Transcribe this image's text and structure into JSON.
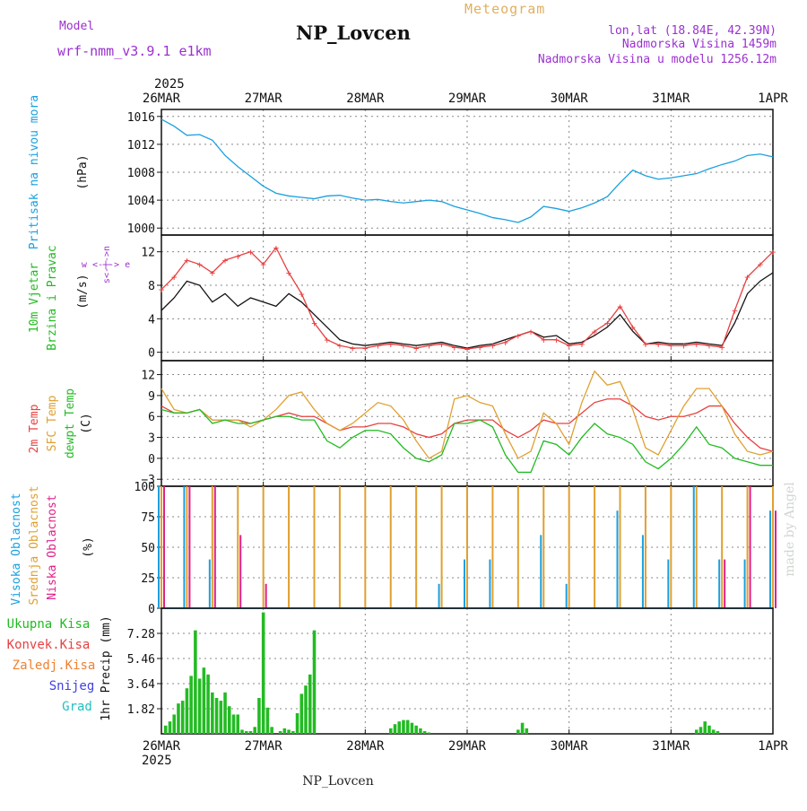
{
  "header": {
    "model_label": "Model",
    "model_value": "wrf-nmm_v3.9.1 e1km",
    "title": "NP_Lovcen",
    "meteogram_label": "Meteogram",
    "lonlat": "lon,lat (18.84E, 42.39N)",
    "elevation": "Nadmorska Visina 1459m",
    "model_elevation": "Nadmorska Visina u modelu 1256.12m"
  },
  "time_axis": {
    "year_label": "2025",
    "dates": [
      "26MAR",
      "27MAR",
      "28MAR",
      "29MAR",
      "30MAR",
      "31MAR",
      "1APR"
    ]
  },
  "footer": {
    "station": "NP_Lovcen"
  },
  "watermark": "made by Angel",
  "colors": {
    "pressure": "#1aa0e0",
    "wind_speed_label": "#22bb22",
    "wind_dir_label": "#22bb22",
    "t2m": "#e84040",
    "sfc": "#e0a030",
    "dewpt": "#22bb22",
    "cloud_high": "#1aa0e0",
    "cloud_mid": "#e0a030",
    "cloud_low": "#e0208a",
    "precip_total": "#22bb22",
    "precip_conv": "#e84040",
    "precip_frz": "#f08030",
    "snow": "#4040e0",
    "graupel": "#20c0c0",
    "purple": "#9b30d0"
  },
  "chart_data": [
    {
      "type": "line",
      "panel": "pressure",
      "ylabel_left": "Pritisak na nivou mora",
      "unit": "(hPa)",
      "ylim": [
        999,
        1017
      ],
      "yticks": [
        1000,
        1004,
        1008,
        1012,
        1016
      ],
      "x_hours": [
        0,
        3,
        6,
        9,
        12,
        15,
        18,
        21,
        24,
        27,
        30,
        33,
        36,
        39,
        42,
        45,
        48,
        51,
        54,
        57,
        60,
        63,
        66,
        69,
        72,
        75,
        78,
        81,
        84,
        87,
        90,
        93,
        96,
        99,
        102,
        105,
        108,
        111,
        114,
        117,
        120,
        123,
        126,
        129,
        132,
        135,
        138,
        141,
        144
      ],
      "series": [
        {
          "name": "Pritisak na nivou mora",
          "color": "#1aa0e0",
          "values": [
            1015.6,
            1014.6,
            1013.3,
            1013.4,
            1012.6,
            1010.4,
            1008.8,
            1007.4,
            1006.0,
            1005.0,
            1004.6,
            1004.4,
            1004.2,
            1004.6,
            1004.7,
            1004.3,
            1004.0,
            1004.1,
            1003.8,
            1003.6,
            1003.8,
            1004.0,
            1003.8,
            1003.1,
            1002.6,
            1002.1,
            1001.5,
            1001.2,
            1000.8,
            1001.6,
            1003.1,
            1002.8,
            1002.4,
            1002.9,
            1003.6,
            1004.5,
            1006.5,
            1008.3,
            1007.5,
            1007.0,
            1007.2,
            1007.5,
            1007.8,
            1008.5,
            1009.1,
            1009.6,
            1010.4,
            1010.6,
            1010.2
          ]
        }
      ]
    },
    {
      "type": "line",
      "panel": "wind",
      "ylabel_left_1": "10m Vjetar",
      "ylabel_left_2": "Brzina i Pravac",
      "unit": "(m/s)",
      "compass_label": "w <-|-> e",
      "compass_vertical": "s<-|->n",
      "ylim": [
        -1,
        14
      ],
      "yticks": [
        0,
        4,
        8,
        12
      ],
      "x_hours": [
        0,
        3,
        6,
        9,
        12,
        15,
        18,
        21,
        24,
        27,
        30,
        33,
        36,
        39,
        42,
        45,
        48,
        51,
        54,
        57,
        60,
        63,
        66,
        69,
        72,
        75,
        78,
        81,
        84,
        87,
        90,
        93,
        96,
        99,
        102,
        105,
        108,
        111,
        114,
        117,
        120,
        123,
        126,
        129,
        132,
        135,
        138,
        141,
        144
      ],
      "series": [
        {
          "name": "speed",
          "color": "#111111",
          "values": [
            5.0,
            6.5,
            8.5,
            8.0,
            6.0,
            7.0,
            5.5,
            6.5,
            6.0,
            5.5,
            7.0,
            6.0,
            4.5,
            3.0,
            1.5,
            1.0,
            0.8,
            1.0,
            1.2,
            1.0,
            0.8,
            1.0,
            1.2,
            0.8,
            0.5,
            0.8,
            1.0,
            1.5,
            2.0,
            2.5,
            1.8,
            2.0,
            1.0,
            1.2,
            2.0,
            3.0,
            4.5,
            2.5,
            1.0,
            1.2,
            1.0,
            1.0,
            1.2,
            1.0,
            0.8,
            3.5,
            7.0,
            8.5,
            9.5
          ]
        },
        {
          "name": "gust",
          "color": "#e84040",
          "values": [
            7.5,
            9.0,
            11.0,
            10.5,
            9.5,
            11.0,
            11.5,
            12.0,
            10.5,
            12.5,
            9.5,
            7.0,
            3.5,
            1.5,
            0.8,
            0.5,
            0.5,
            0.8,
            1.0,
            0.8,
            0.5,
            0.8,
            1.0,
            0.6,
            0.4,
            0.6,
            0.8,
            1.2,
            2.0,
            2.5,
            1.5,
            1.5,
            0.8,
            1.0,
            2.5,
            3.5,
            5.5,
            3.0,
            1.0,
            1.0,
            0.8,
            0.8,
            1.0,
            0.8,
            0.6,
            5.0,
            9.0,
            10.5,
            12.0
          ]
        }
      ]
    },
    {
      "type": "line",
      "panel": "temperature",
      "ylabel_1": "2m Temp",
      "ylabel_2": "SFC Temp",
      "ylabel_3": "dewpt Temp",
      "unit": "(C)",
      "ylim": [
        -4,
        14
      ],
      "yticks": [
        -3,
        0,
        3,
        6,
        9,
        12
      ],
      "x_hours": [
        0,
        3,
        6,
        9,
        12,
        15,
        18,
        21,
        24,
        27,
        30,
        33,
        36,
        39,
        42,
        45,
        48,
        51,
        54,
        57,
        60,
        63,
        66,
        69,
        72,
        75,
        78,
        81,
        84,
        87,
        90,
        93,
        96,
        99,
        102,
        105,
        108,
        111,
        114,
        117,
        120,
        123,
        126,
        129,
        132,
        135,
        138,
        141,
        144
      ],
      "series": [
        {
          "name": "2m Temp",
          "color": "#e84040",
          "values": [
            7.5,
            6.5,
            6.5,
            7.0,
            5.5,
            5.5,
            5.5,
            5.0,
            5.5,
            6.0,
            6.5,
            6.0,
            6.0,
            5.0,
            4.0,
            4.5,
            4.5,
            5.0,
            5.0,
            4.5,
            3.5,
            3.0,
            3.5,
            5.0,
            5.5,
            5.5,
            5.5,
            4.0,
            3.0,
            4.0,
            5.5,
            5.0,
            5.0,
            6.5,
            8.0,
            8.5,
            8.5,
            7.5,
            6.0,
            5.5,
            6.0,
            6.0,
            6.5,
            7.5,
            7.5,
            5.0,
            3.0,
            1.5,
            1.0
          ]
        },
        {
          "name": "SFC Temp",
          "color": "#e0a030",
          "values": [
            10.0,
            7.0,
            6.5,
            7.0,
            5.5,
            5.5,
            5.5,
            4.5,
            5.5,
            7.0,
            9.0,
            9.5,
            7.0,
            5.0,
            4.0,
            5.0,
            6.5,
            8.0,
            7.5,
            5.5,
            2.5,
            0.0,
            1.0,
            8.5,
            9.0,
            8.0,
            7.5,
            3.5,
            0.0,
            1.0,
            6.5,
            5.0,
            2.0,
            8.0,
            12.5,
            10.5,
            11.0,
            7.0,
            1.5,
            0.5,
            4.0,
            7.5,
            10.0,
            10.0,
            7.5,
            3.5,
            1.0,
            0.5,
            1.0
          ]
        },
        {
          "name": "dewpt Temp",
          "color": "#22bb22",
          "values": [
            7.0,
            6.5,
            6.5,
            7.0,
            5.0,
            5.5,
            5.0,
            5.0,
            5.5,
            6.0,
            6.0,
            5.5,
            5.5,
            2.5,
            1.5,
            3.0,
            4.0,
            4.0,
            3.5,
            1.5,
            0.0,
            -0.5,
            0.5,
            5.0,
            5.0,
            5.5,
            4.5,
            0.5,
            -2.0,
            -2.0,
            2.5,
            2.0,
            0.5,
            3.0,
            5.0,
            3.5,
            3.0,
            2.0,
            -0.5,
            -1.5,
            0.0,
            2.0,
            4.5,
            2.0,
            1.5,
            0.0,
            -0.5,
            -1.0,
            -1.0
          ]
        }
      ]
    },
    {
      "type": "bar",
      "panel": "cloud",
      "ylabel_1": "Visoka Oblacnost",
      "ylabel_2": "Srednja Oblacnost",
      "ylabel_3": "Niska Oblacnost",
      "unit": "(%)",
      "ylim": [
        0,
        100
      ],
      "yticks": [
        0,
        25,
        50,
        75,
        100
      ],
      "x_hours": [
        0,
        6,
        12,
        18,
        24,
        30,
        36,
        42,
        48,
        54,
        60,
        66,
        72,
        78,
        84,
        90,
        96,
        102,
        108,
        114,
        120,
        126,
        132,
        138,
        144
      ],
      "series": [
        {
          "name": "Visoka Oblacnost",
          "color": "#1aa0e0",
          "values": [
            100,
            100,
            40,
            0,
            0,
            0,
            0,
            0,
            0,
            0,
            0,
            20,
            40,
            40,
            0,
            60,
            20,
            0,
            80,
            60,
            40,
            100,
            40,
            40,
            80
          ]
        },
        {
          "name": "Srednja Oblacnost",
          "color": "#e0a030",
          "values": [
            100,
            100,
            100,
            100,
            100,
            100,
            100,
            100,
            100,
            100,
            100,
            100,
            100,
            100,
            100,
            100,
            100,
            100,
            100,
            100,
            100,
            100,
            100,
            100,
            100
          ]
        },
        {
          "name": "Niska Oblacnost",
          "color": "#e0208a",
          "values": [
            100,
            100,
            100,
            60,
            20,
            0,
            0,
            0,
            0,
            0,
            0,
            0,
            0,
            0,
            0,
            0,
            0,
            0,
            0,
            0,
            0,
            0,
            40,
            100,
            80
          ]
        }
      ]
    },
    {
      "type": "bar",
      "panel": "precip",
      "ylabel": "1hr Precip (mm)",
      "legend": [
        "Ukupna Kisa",
        "Konvek.Kisa",
        "Zaledj.Kisa",
        "Snijeg",
        "Grad"
      ],
      "ylim": [
        0,
        9.1
      ],
      "yticks": [
        "1.82",
        "3.64",
        "5.46",
        "7.28"
      ],
      "x_hours": [
        1,
        2,
        3,
        4,
        5,
        6,
        7,
        8,
        9,
        10,
        11,
        12,
        13,
        14,
        15,
        16,
        17,
        18,
        19,
        20,
        21,
        22,
        23,
        24,
        25,
        26,
        27,
        28,
        29,
        30,
        31,
        32,
        33,
        34,
        35,
        36,
        54,
        55,
        56,
        57,
        58,
        59,
        60,
        61,
        62,
        63,
        84,
        85,
        86,
        126,
        127,
        128,
        129,
        130,
        131
      ],
      "series": [
        {
          "name": "Ukupna Kisa",
          "color": "#22bb22",
          "values": [
            0.6,
            0.9,
            1.4,
            2.2,
            2.4,
            3.3,
            4.2,
            7.5,
            4.0,
            4.8,
            4.3,
            3.0,
            2.6,
            2.4,
            3.0,
            2.0,
            1.4,
            1.4,
            0.3,
            0.2,
            0.2,
            0.5,
            2.6,
            8.8,
            1.9,
            0.5,
            0.0,
            0.2,
            0.4,
            0.3,
            0.2,
            1.5,
            2.9,
            3.5,
            4.3,
            7.5,
            0.4,
            0.7,
            0.9,
            1.0,
            1.0,
            0.8,
            0.6,
            0.4,
            0.2,
            0.1,
            0.3,
            0.8,
            0.4,
            0.3,
            0.5,
            0.9,
            0.6,
            0.3,
            0.2
          ]
        }
      ]
    }
  ]
}
